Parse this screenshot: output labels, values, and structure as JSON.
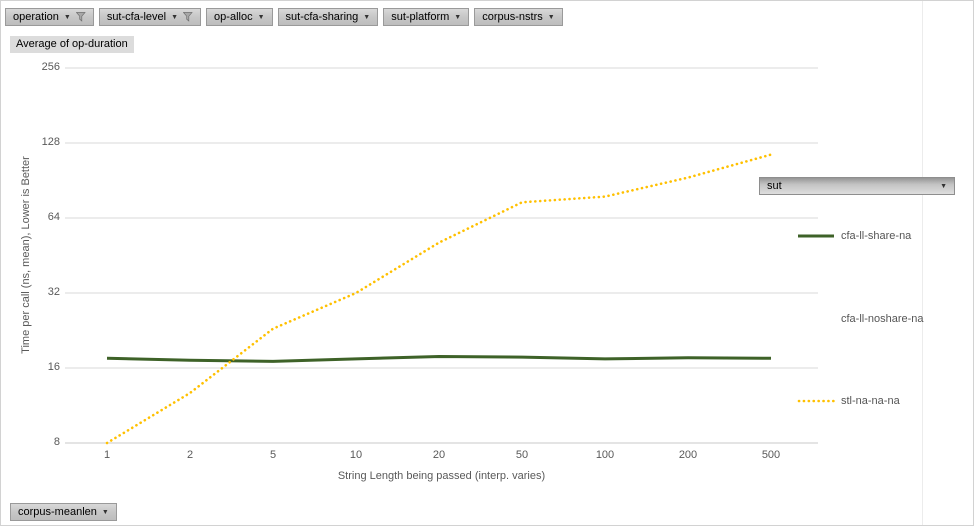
{
  "filters_top": [
    {
      "label": "operation",
      "filtered": true
    },
    {
      "label": "sut-cfa-level",
      "filtered": true
    },
    {
      "label": "op-alloc",
      "filtered": false
    },
    {
      "label": "sut-cfa-sharing",
      "filtered": false
    },
    {
      "label": "sut-platform",
      "filtered": false
    },
    {
      "label": "corpus-nstrs",
      "filtered": false
    }
  ],
  "value_field_label": "Average of op-duration",
  "bottom_filter": {
    "label": "corpus-meanlen"
  },
  "legend": {
    "field_label": "sut",
    "entries": [
      {
        "label": "cfa-ll-share-na",
        "swatch": "solid",
        "color": "#3E6228"
      },
      {
        "label": "cfa-ll-noshare-na",
        "swatch": "none",
        "color": null
      },
      {
        "label": "stl-na-na-na",
        "swatch": "dotted",
        "color": "#FFC000"
      }
    ]
  },
  "chart_data": {
    "type": "line",
    "x_categories": [
      1,
      2,
      5,
      10,
      20,
      50,
      100,
      200,
      500
    ],
    "xlabel": "String Length  being passed (interp. varies)",
    "ylabel": "Time per call (ns, mean),  Lower is Better",
    "y_scale": "log2",
    "y_ticks": [
      8,
      16,
      32,
      64,
      128,
      256
    ],
    "ylim": [
      8,
      256
    ],
    "grid": true,
    "legend_position": "right",
    "series": [
      {
        "name": "cfa-ll-share-na",
        "color": "#3E6228",
        "style": "solid",
        "values": [
          17.5,
          17.2,
          17.0,
          17.4,
          17.8,
          17.7,
          17.4,
          17.6,
          17.5
        ]
      },
      {
        "name": "cfa-ll-noshare-na",
        "color": null,
        "style": "none",
        "values": []
      },
      {
        "name": "stl-na-na-na",
        "color": "#FFC000",
        "style": "dotted",
        "values": [
          8,
          12.7,
          23,
          32,
          51,
          74,
          78,
          93,
          115
        ]
      }
    ]
  }
}
